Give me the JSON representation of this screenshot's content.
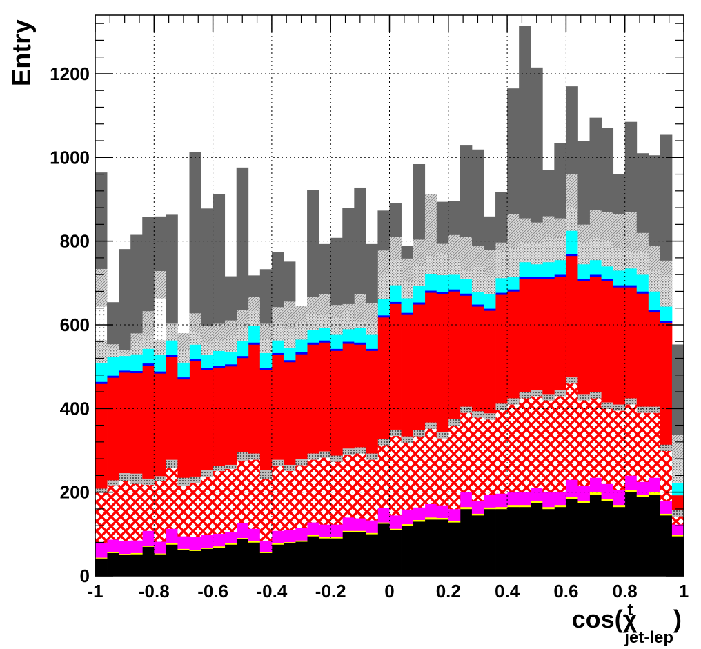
{
  "chart_data": {
    "type": "bar",
    "stacked": true,
    "xlabel": "cos(χ",
    "xlabel_sup": "t",
    "xlabel_sub": "jet-lep",
    "xlabel_close": ")",
    "ylabel": "Entry",
    "xlim": [
      -1,
      1
    ],
    "ylim": [
      0,
      1340
    ],
    "grid": true,
    "x_ticks": [
      -1,
      -0.8,
      -0.6,
      -0.4,
      -0.2,
      0,
      0.2,
      0.4,
      0.6,
      0.8,
      1
    ],
    "x_tick_labels": [
      "-1",
      "-0.8",
      "-0.6",
      "-0.4",
      "-0.2",
      "0",
      "0.2",
      "0.4",
      "0.6",
      "0.8",
      "1"
    ],
    "y_ticks": [
      0,
      200,
      400,
      600,
      800,
      1000,
      1200
    ],
    "y_tick_labels": [
      "0",
      "200",
      "400",
      "600",
      "800",
      "1000",
      "1200"
    ],
    "bin_width": 0.04,
    "x": [
      -0.98,
      -0.94,
      -0.9,
      -0.86,
      -0.82,
      -0.78,
      -0.74,
      -0.7,
      -0.66,
      -0.62,
      -0.58,
      -0.54,
      -0.5,
      -0.46,
      -0.42,
      -0.38,
      -0.34,
      -0.3,
      -0.26,
      -0.22,
      -0.18,
      -0.14,
      -0.1,
      -0.06,
      -0.02,
      0.02,
      0.06,
      0.1,
      0.14,
      0.18,
      0.22,
      0.26,
      0.3,
      0.34,
      0.38,
      0.42,
      0.46,
      0.5,
      0.54,
      0.58,
      0.62,
      0.66,
      0.7,
      0.74,
      0.78,
      0.82,
      0.86,
      0.9,
      0.94,
      0.98
    ],
    "series": [
      {
        "color": "#000000",
        "pattern": "solid",
        "values": [
          42,
          55,
          50,
          52,
          70,
          52,
          75,
          62,
          60,
          65,
          68,
          75,
          88,
          80,
          55,
          75,
          78,
          82,
          95,
          90,
          90,
          105,
          105,
          100,
          125,
          110,
          120,
          130,
          135,
          135,
          128,
          160,
          145,
          160,
          160,
          165,
          165,
          175,
          160,
          165,
          185,
          175,
          195,
          180,
          165,
          200,
          190,
          195,
          145,
          95
        ]
      },
      {
        "color": "#ffff00",
        "pattern": "solid",
        "values": [
          2,
          2,
          3,
          3,
          3,
          2,
          3,
          3,
          3,
          3,
          3,
          3,
          3,
          3,
          3,
          3,
          3,
          3,
          3,
          3,
          3,
          3,
          3,
          3,
          3,
          3,
          4,
          4,
          5,
          4,
          4,
          5,
          4,
          4,
          5,
          5,
          5,
          5,
          5,
          5,
          5,
          5,
          5,
          5,
          5,
          5,
          5,
          5,
          4,
          3
        ]
      },
      {
        "color": "#ff00ff",
        "pattern": "solid",
        "values": [
          35,
          30,
          30,
          30,
          35,
          28,
          35,
          30,
          30,
          30,
          30,
          28,
          35,
          30,
          25,
          30,
          30,
          30,
          30,
          30,
          30,
          32,
          30,
          30,
          35,
          32,
          35,
          30,
          32,
          30,
          28,
          35,
          30,
          30,
          32,
          30,
          30,
          30,
          35,
          30,
          40,
          35,
          35,
          35,
          35,
          35,
          30,
          35,
          30,
          25
        ]
      },
      {
        "color": "#ff0000",
        "pattern": "checker",
        "values": [
          120,
          130,
          145,
          135,
          110,
          145,
          145,
          120,
          130,
          140,
          150,
          150,
          150,
          165,
          150,
          155,
          140,
          150,
          150,
          160,
          150,
          150,
          155,
          145,
          150,
          190,
          160,
          170,
          180,
          160,
          200,
          190,
          200,
          180,
          200,
          210,
          225,
          220,
          220,
          230,
          230,
          205,
          190,
          180,
          190,
          170,
          165,
          155,
          120,
          20
        ]
      },
      {
        "color": "#c0c0c0",
        "pattern": "dots",
        "values": [
          10,
          12,
          18,
          25,
          15,
          12,
          20,
          20,
          15,
          15,
          12,
          10,
          20,
          15,
          20,
          15,
          15,
          15,
          15,
          15,
          15,
          15,
          15,
          15,
          15,
          15,
          15,
          15,
          15,
          15,
          15,
          15,
          15,
          15,
          15,
          15,
          15,
          15,
          15,
          15,
          15,
          15,
          15,
          15,
          15,
          15,
          15,
          15,
          15,
          15
        ]
      },
      {
        "color": "#ff0000",
        "pattern": "solid",
        "values": [
          250,
          245,
          240,
          240,
          270,
          245,
          245,
          235,
          275,
          240,
          235,
          235,
          225,
          260,
          240,
          250,
          245,
          250,
          260,
          260,
          250,
          250,
          245,
          245,
          290,
          300,
          290,
          300,
          310,
          330,
          305,
          265,
          250,
          245,
          260,
          255,
          270,
          265,
          275,
          270,
          290,
          270,
          275,
          290,
          280,
          265,
          270,
          225,
          290,
          35
        ]
      },
      {
        "color": "#0000ff",
        "pattern": "solid",
        "values": [
          5,
          5,
          5,
          5,
          5,
          5,
          5,
          5,
          5,
          5,
          5,
          5,
          5,
          5,
          5,
          5,
          5,
          5,
          5,
          5,
          5,
          5,
          5,
          5,
          5,
          5,
          5,
          5,
          5,
          5,
          5,
          5,
          5,
          5,
          5,
          5,
          5,
          5,
          5,
          5,
          5,
          5,
          5,
          5,
          5,
          5,
          5,
          5,
          5,
          0
        ]
      },
      {
        "color": "#00ffff",
        "pattern": "solid",
        "values": [
          45,
          45,
          35,
          40,
          35,
          40,
          35,
          35,
          35,
          30,
          35,
          30,
          35,
          40,
          35,
          30,
          30,
          30,
          30,
          30,
          35,
          30,
          35,
          35,
          40,
          40,
          35,
          40,
          40,
          40,
          35,
          35,
          30,
          35,
          35,
          30,
          35,
          30,
          35,
          35,
          55,
          35,
          35,
          30,
          35,
          40,
          40,
          45,
          35,
          30
        ]
      },
      {
        "color": "#c8c8c8",
        "pattern": "fine-dots",
        "values": [
          55,
          20,
          5,
          30,
          30,
          35,
          40,
          30,
          30,
          30,
          25,
          35,
          35,
          35,
          35,
          40,
          45,
          40,
          40,
          30,
          40,
          40,
          15,
          25,
          60,
          60,
          40,
          50,
          40,
          50,
          35,
          20,
          60,
          45,
          65,
          70,
          45,
          50,
          55,
          55,
          55,
          50,
          50,
          60,
          50,
          40,
          55,
          50,
          75,
          55
        ]
      },
      {
        "color": "#dcdcdc",
        "pattern": "sparse-dots",
        "values": [
          80,
          0,
          0,
          0,
          0,
          100,
          0,
          0,
          0,
          0,
          0,
          0,
          0,
          0,
          0,
          0,
          0,
          0,
          0,
          0,
          0,
          0,
          0,
          0,
          0,
          0,
          0,
          0,
          0,
          0,
          0,
          0,
          0,
          0,
          0,
          0,
          0,
          0,
          0,
          0,
          0,
          0,
          0,
          0,
          0,
          0,
          0,
          0,
          0,
          0
        ]
      },
      {
        "color": "#d2d2d2",
        "pattern": "hatch",
        "values": [
          90,
          10,
          10,
          20,
          60,
          65,
          0,
          40,
          45,
          40,
          40,
          40,
          40,
          35,
          35,
          40,
          65,
          40,
          40,
          50,
          30,
          20,
          65,
          50,
          55,
          55,
          55,
          60,
          150,
          25,
          60,
          80,
          50,
          60,
          20,
          80,
          60,
          50,
          55,
          45,
          80,
          45,
          70,
          70,
          85,
          95,
          45,
          60,
          35,
          60
        ]
      },
      {
        "color": "#666666",
        "pattern": "solid",
        "values": [
          230,
          100,
          240,
          235,
          225,
          130,
          260,
          0,
          385,
          280,
          310,
          105,
          340,
          50,
          130,
          130,
          95,
          0,
          255,
          120,
          160,
          230,
          255,
          140,
          95,
          80,
          30,
          180,
          0,
          100,
          80,
          220,
          230,
          80,
          120,
          300,
          460,
          370,
          110,
          180,
          210,
          200,
          220,
          200,
          95,
          215,
          190,
          215,
          300,
          215
        ]
      }
    ]
  }
}
